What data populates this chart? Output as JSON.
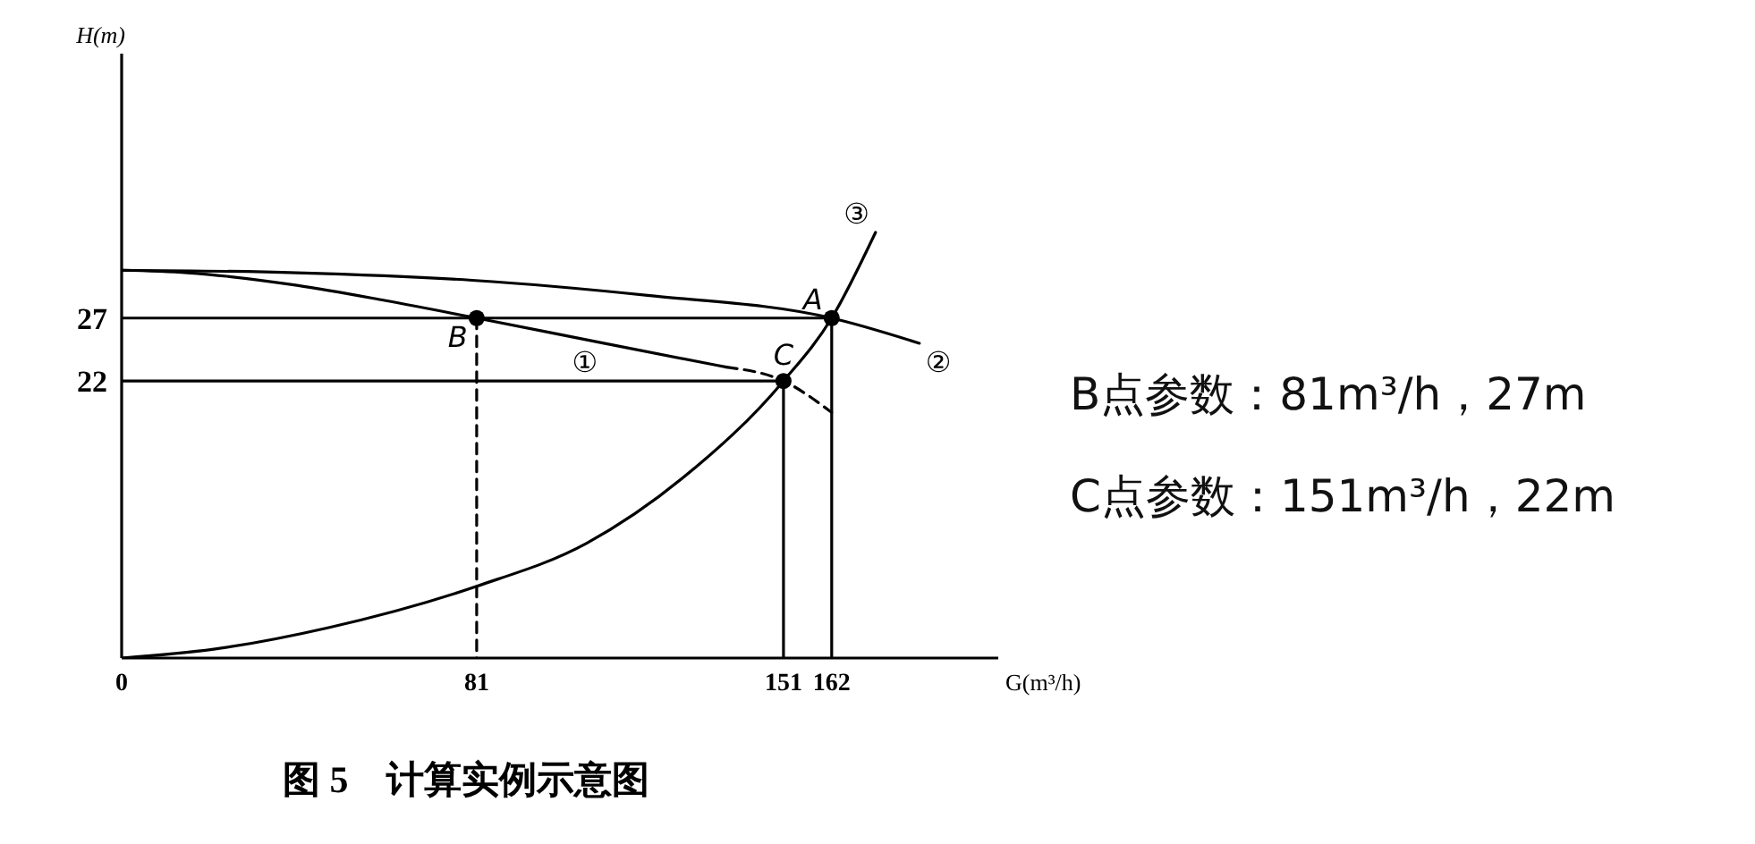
{
  "chart_data": {
    "type": "line",
    "title": "图 5　计算实例示意图",
    "xlabel": "G(m³/h)",
    "ylabel": "H(m)",
    "xlim": [
      0,
      200
    ],
    "ylim": [
      0,
      48
    ],
    "xticks": [
      0,
      81,
      151,
      162
    ],
    "yticks": [
      22,
      27
    ],
    "series": [
      {
        "type": "line",
        "color": "#000000",
        "line_style": "solid",
        "marker": "none",
        "x": [
          0,
          40,
          80,
          120,
          162,
          182
        ],
        "values": [
          30.8,
          30.6,
          30,
          28.8,
          27,
          25
        ]
      },
      {
        "type": "line",
        "color": "#000000",
        "line_style": "solid",
        "marker": "none",
        "x": [
          0,
          15,
          40,
          60,
          81,
          110,
          138
        ],
        "values": [
          30.8,
          30.6,
          29.6,
          28.4,
          27,
          25,
          23.1
        ]
      },
      {
        "type": "line",
        "color": "#000000",
        "line_style": "dashed",
        "marker": "none",
        "x": [
          138,
          151,
          162
        ],
        "values": [
          23.1,
          22,
          19.5
        ]
      },
      {
        "type": "line",
        "color": "#000000",
        "line_style": "solid",
        "marker": "none",
        "x": [
          0,
          21,
          47,
          81,
          106,
          128,
          151,
          162,
          172
        ],
        "values": [
          0,
          0.7,
          2.4,
          5.7,
          9.1,
          14.3,
          22,
          27,
          33.8
        ]
      },
      {
        "type": "line",
        "color": "#000000",
        "line_style": "solid",
        "marker": "none",
        "x": [
          0,
          162,
          162
        ],
        "values": [
          27,
          27,
          0
        ]
      },
      {
        "type": "line",
        "color": "#000000",
        "line_style": "solid",
        "marker": "none",
        "x": [
          0,
          151,
          151
        ],
        "values": [
          22,
          22,
          0
        ]
      },
      {
        "type": "line",
        "color": "#000000",
        "line_style": "dashed",
        "marker": "none",
        "x": [
          81,
          81
        ],
        "values": [
          27,
          0
        ]
      },
      {
        "type": "scatter",
        "color": "#000000",
        "marker": "circle",
        "x": [
          81,
          151,
          162
        ],
        "values": [
          27,
          22,
          27
        ]
      }
    ],
    "annotations": [
      "B点参数：81m³/h，27m",
      "C点参数：151m³/h，22m",
      {
        "text": "A",
        "x": 162,
        "y": 27
      },
      {
        "text": "B",
        "x": 81,
        "y": 27
      },
      {
        "text": "C",
        "x": 151,
        "y": 22
      },
      {
        "text": "①",
        "x": 110,
        "y": 25
      },
      {
        "text": "②",
        "x": 182,
        "y": 25
      },
      {
        "text": "③",
        "x": 172,
        "y": 33.8
      }
    ]
  }
}
